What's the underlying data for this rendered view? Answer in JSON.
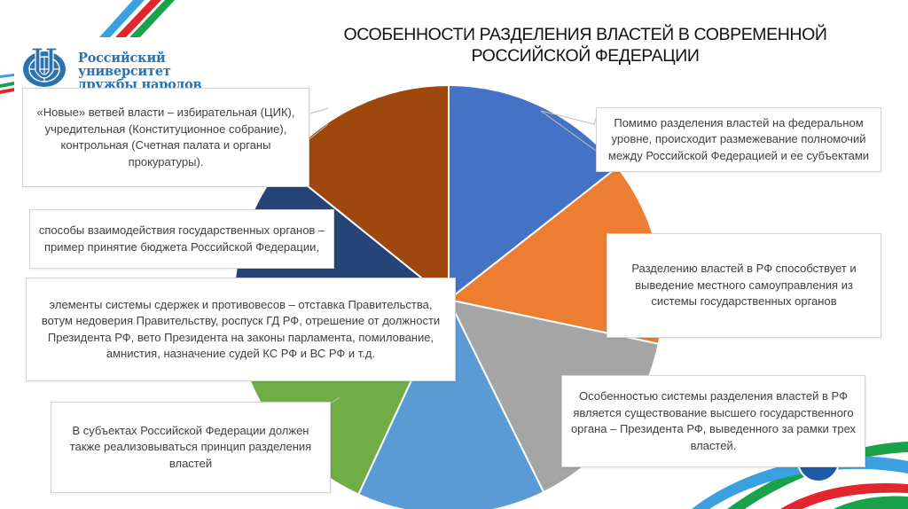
{
  "header": {
    "logo_line1": "Российский университет",
    "logo_line2": "дружбы народов",
    "title_line1": "ОСОБЕННОСТИ РАЗДЕЛЕНИЯ ВЛАСТЕЙ В СОВРЕМЕННОЙ",
    "title_line2": "РОССИЙСКОЙ ФЕДЕРАЦИИ"
  },
  "colors": {
    "blue": "#4472c4",
    "orange": "#ed7d31",
    "gray": "#a5a5a5",
    "light_blue": "#5b9bd5",
    "green": "#70ad47",
    "dark_blue": "#264478",
    "brown": "#9e480e",
    "brand_blue": "#2a73ac",
    "flag_red": "#e3262b",
    "flag_green": "#1aa24a",
    "flag_lightblue": "#3aa0e0"
  },
  "callouts": [
    {
      "id": "federal-level",
      "text": "Помимо разделения властей на федеральном уровне, происходит размежевание полномочий между Российской Федерацией и ее субъектами"
    },
    {
      "id": "local-self-government",
      "text": "Разделению властей в РФ способствует и выведение местного самоуправления из системы государственных органов"
    },
    {
      "id": "president",
      "text": "Особенностью системы разделения властей в РФ является существование высшего государственного органа – Президента РФ, выведенного за рамки трех властей."
    },
    {
      "id": "subjects",
      "text": "В субъектах Российской Федерации должен также реализовываться принцип разделения властей"
    },
    {
      "id": "checks-balances",
      "text": "элементы системы сдержек и противовесов – отставка Правительства, вотум недоверия Правительству, роспуск ГД РФ, отрешение от должности Президента РФ, вето Президента на законы парламента, помилование, амнистия, назначение судей КС РФ и ВС РФ и т.д."
    },
    {
      "id": "interaction",
      "text": "способы взаимодействия государственных органов – пример принятие бюджета Российской Федерации,"
    },
    {
      "id": "new-branches",
      "text": "«Новые» ветвей власти – избирательная (ЦИК), учредительная (Конституционное собрание), контрольная (Счетная палата и органы прокуратуры)."
    }
  ],
  "chart_data": {
    "type": "pie",
    "title": "ОСОБЕННОСТИ РАЗДЕЛЕНИЯ ВЛАСТЕЙ В СОВРЕМЕННОЙ РОССИЙСКОЙ ФЕДЕРАЦИИ",
    "categories": [
      "Помимо разделения властей на федеральном уровне, происходит размежевание полномочий между Российской Федерацией и ее субъектами",
      "Разделению властей в РФ способствует и выведение местного самоуправления из системы государственных органов",
      "Особенностью системы разделения властей в РФ является существование высшего государственного органа – Президента РФ, выведенного за рамки трех властей.",
      "элементы системы сдержек и противовесов – отставка Правительства, вотум недоверия Правительству, роспуск ГД РФ, отрешение от должности Президента РФ, вето Президента на законы парламента, помилование, амнистия, назначение судей КС РФ и ВС РФ и т.д.",
      "В субъектах Российской Федерации должен также реализовываться принцип разделения властей",
      "способы взаимодействия государственных органов – пример принятие бюджета Российской Федерации,",
      "«Новые» ветвей власти – избирательная (ЦИК), учредительная (Конституционное собрание), контрольная (Счетная палата и органы прокуратуры)."
    ],
    "values": [
      14.4,
      13.9,
      14.4,
      14.2,
      14.7,
      14.2,
      14.2
    ],
    "slice_colors": [
      "#4472c4",
      "#ed7d31",
      "#a5a5a5",
      "#5b9bd5",
      "#70ad47",
      "#264478",
      "#9e480e"
    ],
    "start_angle_deg": 0,
    "direction": "clockwise",
    "legend": "none (data labels as callouts)"
  }
}
